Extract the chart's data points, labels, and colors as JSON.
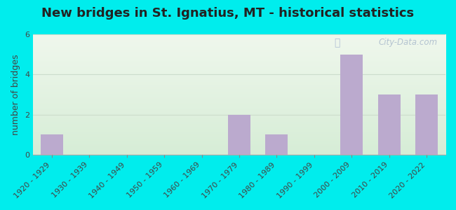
{
  "title": "New bridges in St. Ignatius, MT - historical statistics",
  "ylabel": "number of bridges",
  "categories": [
    "1920 - 1929",
    "1930 - 1939",
    "1940 - 1949",
    "1950 - 1959",
    "1960 - 1969",
    "1970 - 1979",
    "1980 - 1989",
    "1990 - 1999",
    "2000 - 2009",
    "2010 - 2019",
    "2020 - 2022"
  ],
  "values": [
    1,
    0,
    0,
    0,
    0,
    2,
    1,
    0,
    5,
    3,
    3
  ],
  "bar_color": "#bbaace",
  "background_outer": "#00eded",
  "background_inner_top": "#eef5ee",
  "background_inner_bottom": "#ddeedd",
  "grid_color": "#ccddcc",
  "ylim": [
    0,
    6
  ],
  "yticks": [
    0,
    2,
    4,
    6
  ],
  "title_fontsize": 13,
  "ylabel_fontsize": 9,
  "tick_fontsize": 8,
  "watermark": "City-Data.com",
  "title_color": "#222222",
  "tick_color": "#444444"
}
